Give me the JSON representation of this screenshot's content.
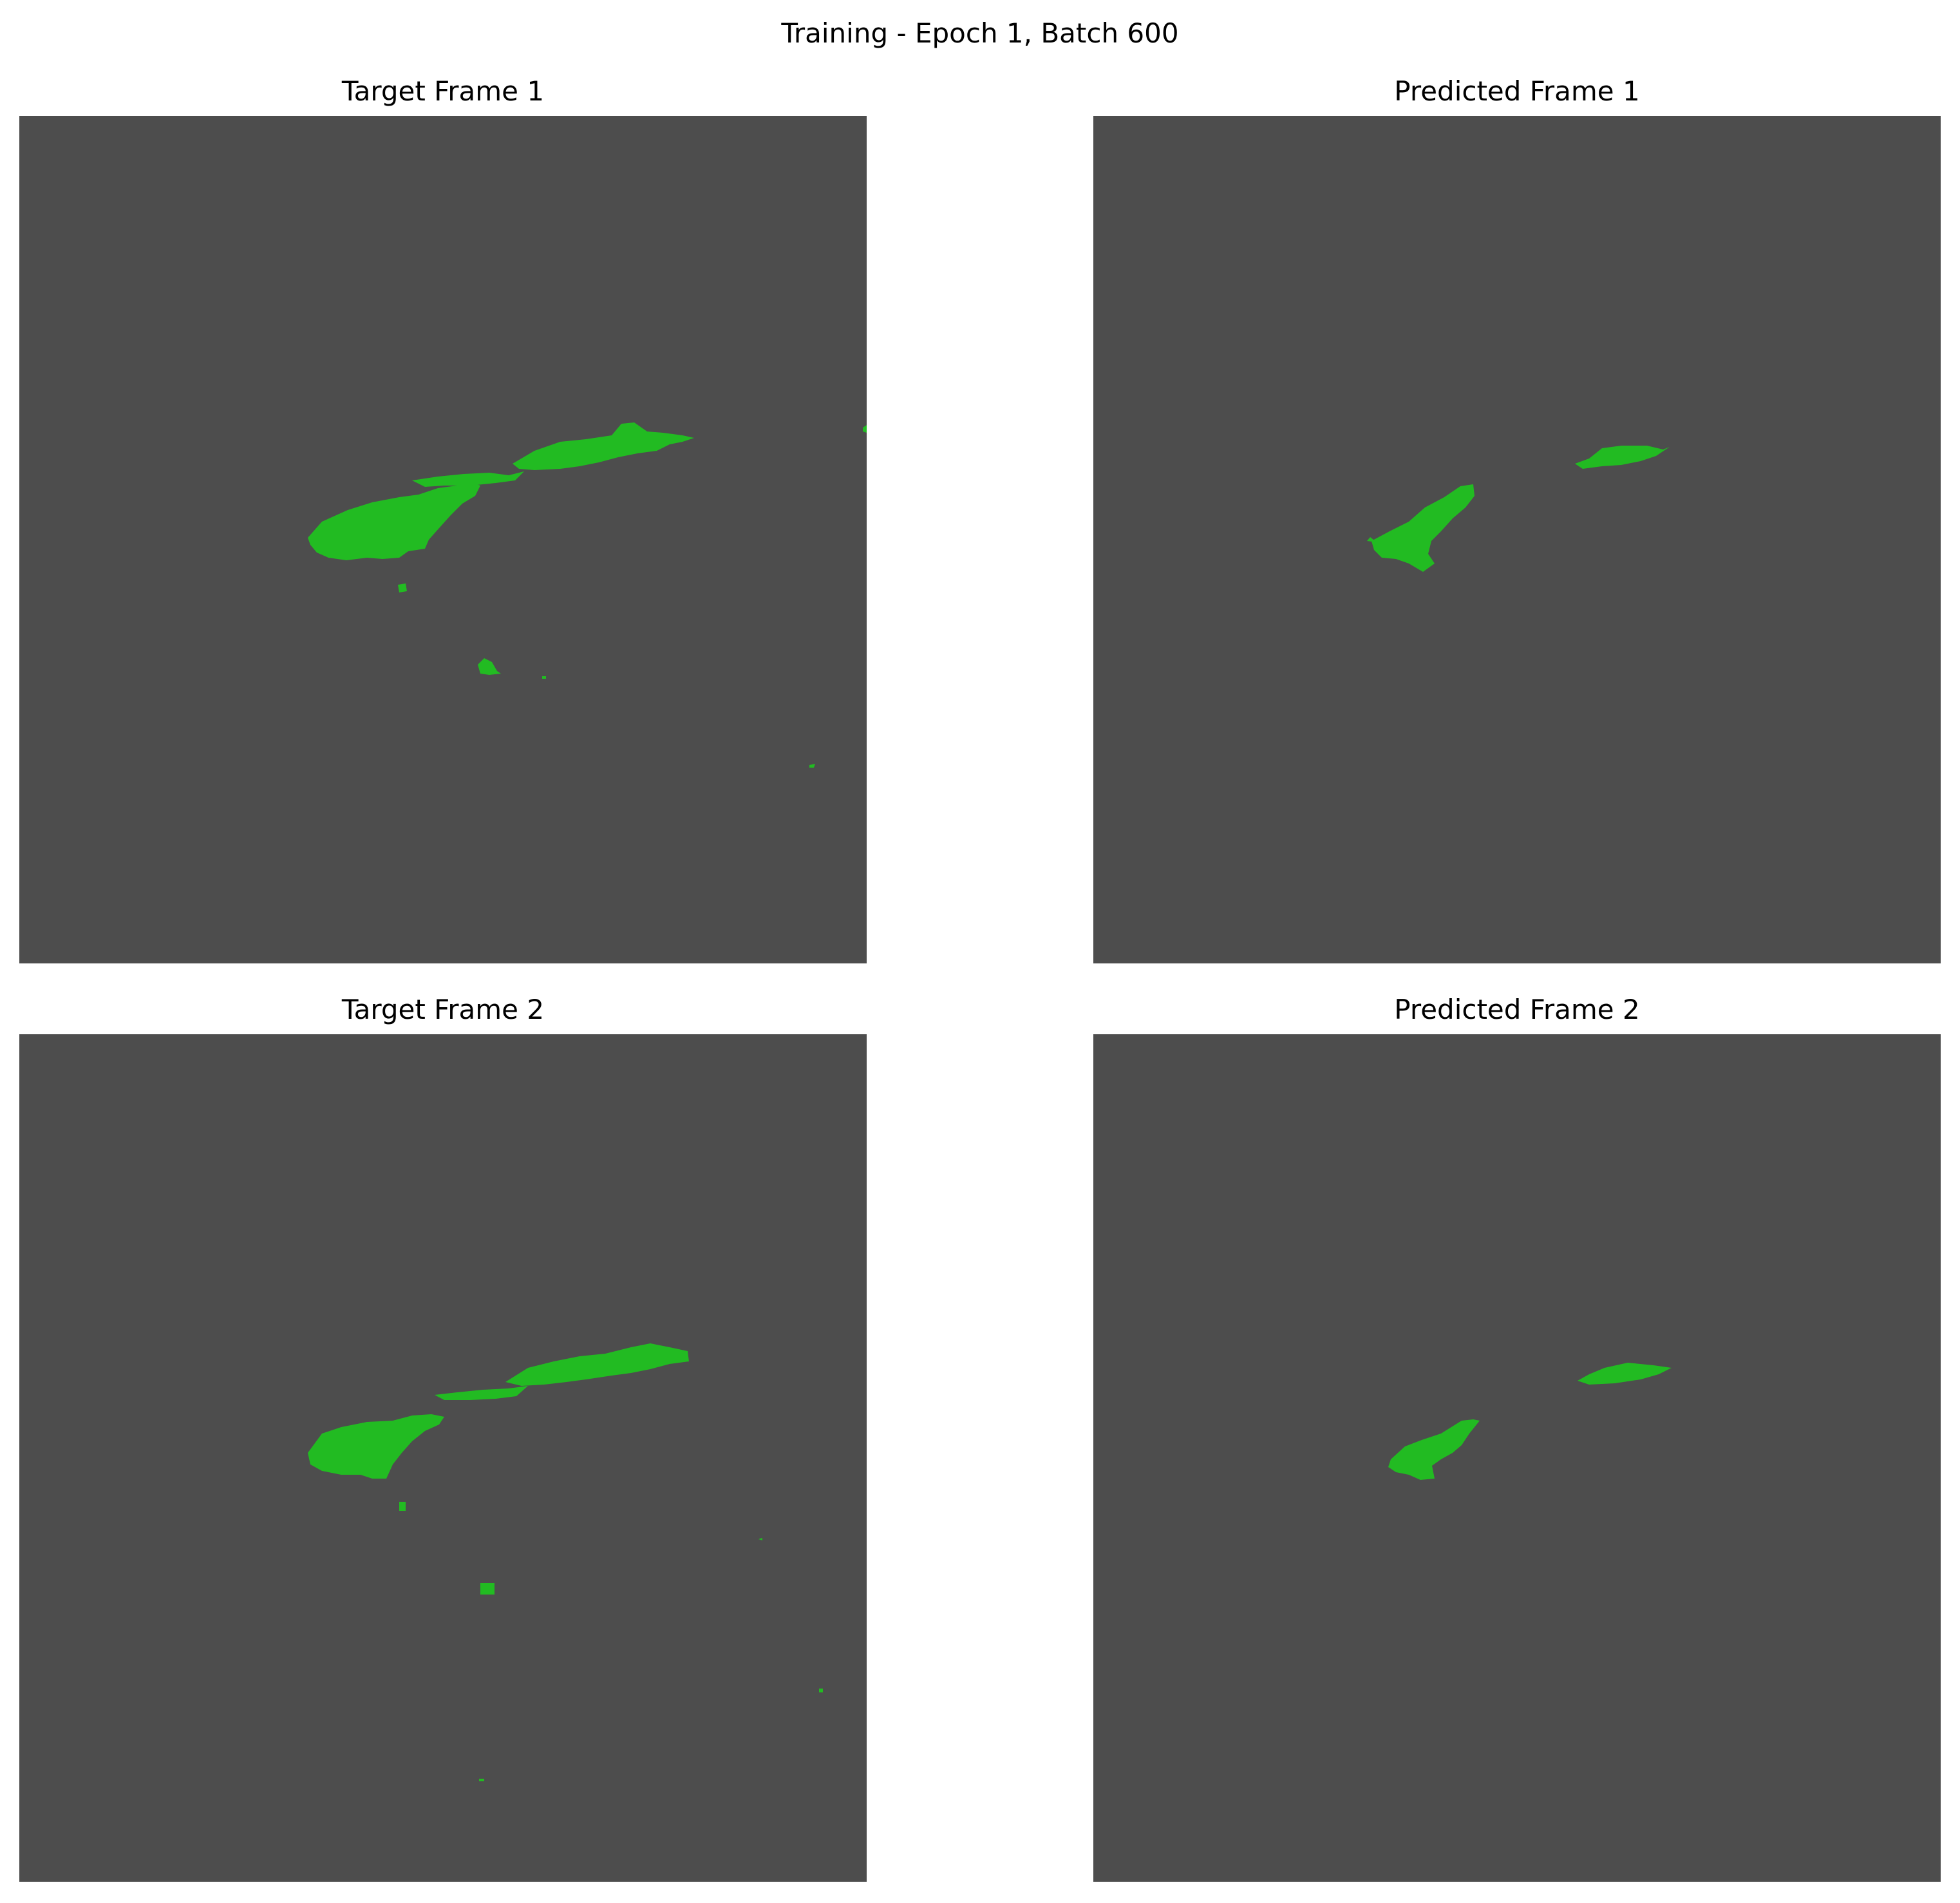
{
  "figure": {
    "suptitle": "Training - Epoch 1, Batch 600"
  },
  "panels": [
    {
      "id": "target-frame-1",
      "title": "Target Frame 1"
    },
    {
      "id": "predicted-frame-1",
      "title": "Predicted Frame 1"
    },
    {
      "id": "target-frame-2",
      "title": "Target Frame 2"
    },
    {
      "id": "predicted-frame-2",
      "title": "Predicted Frame 2"
    }
  ],
  "colors": {
    "background": "#4d4d4d",
    "mask": "#22bb22",
    "page": "#ffffff"
  }
}
